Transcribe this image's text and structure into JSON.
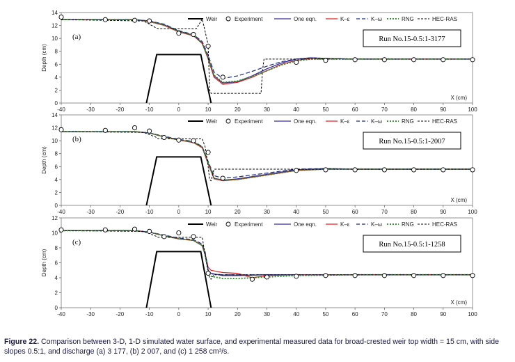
{
  "caption": {
    "label": "Figure 22.",
    "text": "Comparison between 3-D, 1-D simulated water surface, and experimental measured data for broad-crested weir top width = 15 cm, with side slopes 0.5:1, and discharge (a) 3 177, (b) 2 007, and (c) 1 258 cm³/s."
  },
  "legend": {
    "weir": "Weir",
    "experiment": "Experiment",
    "one_eqn": "One eqn.",
    "k_eps": "K–ε",
    "k_omega": "K–ω",
    "rng": "RNG",
    "hecras": "HEC-RAS"
  },
  "colors": {
    "weir": "#000000",
    "experiment": "#000000",
    "one_eqn": "#3b2a9e",
    "k_eps": "#e02020",
    "k_omega": "#1a2a8c",
    "rng": "#1f8a1f",
    "hecras": "#000000"
  },
  "chart_data": [
    {
      "type": "line",
      "panel": "(a)",
      "run_label": "Run No.15-0.5:1-3177",
      "xlabel": "X (cm)",
      "ylabel": "Depth (cm)",
      "xlim": [
        -40,
        100
      ],
      "ylim": [
        0,
        14
      ],
      "xticks": [
        -40,
        -30,
        -20,
        -10,
        0,
        10,
        20,
        30,
        40,
        50,
        60,
        70,
        80,
        90,
        100
      ],
      "yticks": [
        0,
        2,
        4,
        6,
        8,
        10,
        12,
        14
      ],
      "weir": {
        "x": [
          -11,
          -7.5,
          7.5,
          11
        ],
        "y": [
          0,
          7.5,
          7.5,
          0
        ]
      },
      "experiment": {
        "x": [
          -40,
          -25,
          -15,
          -10,
          0,
          5,
          10,
          15,
          40,
          50,
          60,
          70,
          80,
          90,
          100
        ],
        "y": [
          13.3,
          12.9,
          12.8,
          12.7,
          10.8,
          10.6,
          8.8,
          4.0,
          6.3,
          6.6,
          6.7,
          6.7,
          6.7,
          6.7,
          6.7
        ]
      },
      "series": [
        {
          "name": "One eqn.",
          "x": [
            -40,
            -15,
            -10,
            -5,
            0,
            5,
            8,
            10,
            12,
            15,
            20,
            25,
            30,
            35,
            40,
            45,
            50,
            60,
            80,
            100
          ],
          "y": [
            12.9,
            12.9,
            12.7,
            12.1,
            11.1,
            10.5,
            9.3,
            7.0,
            4.2,
            3.1,
            3.3,
            4.2,
            5.3,
            6.2,
            6.8,
            7.0,
            6.9,
            6.8,
            6.8,
            6.8
          ]
        },
        {
          "name": "K–ε",
          "x": [
            -40,
            -15,
            -10,
            -5,
            0,
            5,
            8,
            10,
            12,
            15,
            20,
            25,
            30,
            35,
            40,
            45,
            50,
            60,
            80,
            100
          ],
          "y": [
            12.9,
            12.9,
            12.6,
            12.0,
            11.0,
            10.4,
            9.2,
            6.8,
            4.0,
            2.9,
            3.2,
            4.0,
            5.0,
            6.0,
            6.6,
            6.9,
            6.9,
            6.8,
            6.8,
            6.8
          ]
        },
        {
          "name": "K–ω",
          "x": [
            -40,
            -15,
            -10,
            -5,
            0,
            5,
            8,
            10,
            12,
            15,
            20,
            25,
            30,
            35,
            40,
            45,
            50,
            60,
            80,
            100
          ],
          "y": [
            12.9,
            12.9,
            12.7,
            12.2,
            11.2,
            10.6,
            9.5,
            7.4,
            4.8,
            3.8,
            4.2,
            4.9,
            5.7,
            6.4,
            6.8,
            7.0,
            6.9,
            6.8,
            6.8,
            6.8
          ]
        },
        {
          "name": "RNG",
          "x": [
            -40,
            -15,
            -10,
            -5,
            0,
            5,
            8,
            10,
            12,
            15,
            20,
            25,
            30,
            35,
            40,
            45,
            50,
            60,
            80,
            100
          ],
          "y": [
            12.9,
            12.9,
            12.6,
            12.1,
            11.1,
            10.5,
            9.2,
            7.0,
            4.3,
            3.2,
            3.4,
            4.1,
            5.0,
            5.9,
            6.5,
            6.8,
            6.8,
            6.8,
            6.8,
            6.8
          ]
        },
        {
          "name": "HEC-RAS",
          "x": [
            -40,
            -12,
            -8,
            -7,
            6,
            8,
            9,
            10,
            10.5,
            11,
            28,
            28.5,
            29,
            30,
            100
          ],
          "y": [
            12.9,
            12.7,
            11.7,
            11.5,
            11.5,
            13.0,
            11.0,
            9.0,
            2.0,
            1.5,
            1.5,
            5.0,
            6.8,
            6.8,
            6.8
          ]
        }
      ]
    },
    {
      "type": "line",
      "panel": "(b)",
      "run_label": "Run No.15-0.5:1-2007",
      "xlabel": "X (cm)",
      "ylabel": "Depth (cm)",
      "xlim": [
        -40,
        100
      ],
      "ylim": [
        0,
        14
      ],
      "xticks": [
        -40,
        -30,
        -20,
        -10,
        0,
        10,
        20,
        30,
        40,
        50,
        60,
        70,
        80,
        90,
        100
      ],
      "yticks": [
        0,
        2,
        4,
        6,
        8,
        10,
        12,
        14
      ],
      "weir": {
        "x": [
          -11,
          -7.5,
          7.5,
          11
        ],
        "y": [
          0,
          7.5,
          7.5,
          0
        ]
      },
      "experiment": {
        "x": [
          -40,
          -25,
          -15,
          -10,
          -5,
          0,
          5,
          10,
          15,
          40,
          50,
          60,
          70,
          80,
          90,
          100
        ],
        "y": [
          11.7,
          11.6,
          12.0,
          11.5,
          10.5,
          10.1,
          10.0,
          8.2,
          4.2,
          5.4,
          5.5,
          5.5,
          5.5,
          5.5,
          5.5,
          5.5
        ]
      },
      "series": [
        {
          "name": "One eqn.",
          "x": [
            -40,
            -15,
            -10,
            -5,
            0,
            5,
            8,
            10,
            12,
            15,
            20,
            30,
            40,
            50,
            60,
            80,
            100
          ],
          "y": [
            11.4,
            11.4,
            11.2,
            10.6,
            10.1,
            9.8,
            9.0,
            6.5,
            4.2,
            3.9,
            4.1,
            4.8,
            5.5,
            5.7,
            5.6,
            5.6,
            5.6
          ]
        },
        {
          "name": "K–ε",
          "x": [
            -40,
            -15,
            -10,
            -5,
            0,
            5,
            8,
            10,
            12,
            15,
            20,
            30,
            40,
            50,
            60,
            80,
            100
          ],
          "y": [
            11.4,
            11.4,
            11.2,
            10.6,
            10.1,
            9.7,
            8.9,
            6.4,
            4.1,
            3.8,
            4.0,
            4.7,
            5.4,
            5.6,
            5.6,
            5.6,
            5.6
          ]
        },
        {
          "name": "K–ω",
          "x": [
            -40,
            -15,
            -10,
            -5,
            0,
            5,
            8,
            10,
            12,
            15,
            20,
            30,
            40,
            50,
            60,
            80,
            100
          ],
          "y": [
            11.4,
            11.4,
            11.2,
            10.7,
            10.2,
            9.9,
            9.1,
            6.8,
            4.6,
            4.2,
            4.4,
            5.0,
            5.6,
            5.7,
            5.6,
            5.6,
            5.6
          ]
        },
        {
          "name": "RNG",
          "x": [
            -40,
            -15,
            -10,
            -5,
            0,
            5,
            8,
            10,
            12,
            15,
            20,
            30,
            40,
            50,
            60,
            80,
            100
          ],
          "y": [
            11.4,
            11.4,
            11.2,
            10.6,
            10.1,
            9.8,
            9.0,
            6.6,
            4.2,
            3.9,
            4.0,
            4.7,
            5.4,
            5.6,
            5.6,
            5.6,
            5.6
          ]
        },
        {
          "name": "HEC-RAS",
          "x": [
            -40,
            -12,
            -8,
            -7,
            6,
            8,
            9,
            10,
            10.5,
            11,
            12,
            100
          ],
          "y": [
            11.4,
            11.3,
            10.6,
            10.3,
            10.3,
            10.3,
            9.0,
            6.0,
            4.0,
            3.8,
            5.6,
            5.6
          ]
        }
      ]
    },
    {
      "type": "line",
      "panel": "(c)",
      "run_label": "Run No.15-0.5:1-1258",
      "xlabel": "X (cm)",
      "ylabel": "Depth (cm)",
      "xlim": [
        -40,
        100
      ],
      "ylim": [
        0,
        12
      ],
      "xticks": [
        -40,
        -30,
        -20,
        -10,
        0,
        10,
        20,
        30,
        40,
        50,
        60,
        70,
        80,
        90,
        100
      ],
      "yticks": [
        0,
        2,
        4,
        6,
        8,
        10,
        12
      ],
      "weir": {
        "x": [
          -11,
          -7.5,
          7.5,
          11
        ],
        "y": [
          0,
          7.5,
          7.5,
          0
        ]
      },
      "experiment": {
        "x": [
          -40,
          -25,
          -15,
          -10,
          -5,
          0,
          5,
          10,
          25,
          30,
          40,
          50,
          60,
          70,
          80,
          90,
          100
        ],
        "y": [
          10.4,
          10.4,
          10.5,
          10.2,
          9.5,
          10.0,
          9.5,
          4.6,
          3.8,
          4.1,
          4.2,
          4.3,
          4.3,
          4.3,
          4.3,
          4.3,
          4.3
        ]
      },
      "series": [
        {
          "name": "One eqn.",
          "x": [
            -40,
            -15,
            -10,
            -5,
            0,
            5,
            8,
            9,
            10,
            11,
            15,
            20,
            30,
            40,
            60,
            80,
            100
          ],
          "y": [
            10.3,
            10.3,
            10.1,
            9.6,
            9.2,
            9.0,
            8.3,
            7.0,
            5.0,
            4.6,
            4.3,
            4.3,
            4.4,
            4.4,
            4.4,
            4.4,
            4.4
          ]
        },
        {
          "name": "K–ε",
          "x": [
            -40,
            -15,
            -10,
            -5,
            0,
            5,
            8,
            9,
            10,
            11,
            15,
            20,
            25,
            30,
            40,
            60,
            80,
            100
          ],
          "y": [
            10.3,
            10.3,
            10.1,
            9.6,
            9.2,
            9.0,
            8.3,
            7.2,
            5.4,
            5.0,
            4.7,
            4.6,
            4.0,
            4.3,
            4.4,
            4.4,
            4.4,
            4.4
          ]
        },
        {
          "name": "K–ω",
          "x": [
            -40,
            -15,
            -10,
            -5,
            0,
            5,
            8,
            9,
            10,
            11,
            15,
            20,
            30,
            40,
            60,
            80,
            100
          ],
          "y": [
            10.3,
            10.3,
            10.1,
            9.7,
            9.3,
            9.1,
            8.5,
            7.4,
            5.0,
            4.5,
            4.4,
            4.4,
            4.4,
            4.4,
            4.4,
            4.4,
            4.4
          ]
        },
        {
          "name": "RNG",
          "x": [
            -40,
            -15,
            -10,
            -5,
            0,
            5,
            8,
            9,
            10,
            11,
            15,
            20,
            30,
            40,
            60,
            80,
            100
          ],
          "y": [
            10.3,
            10.3,
            10.1,
            9.6,
            9.2,
            9.0,
            8.3,
            7.0,
            4.8,
            4.2,
            3.9,
            3.9,
            4.1,
            4.3,
            4.4,
            4.4,
            4.4
          ]
        },
        {
          "name": "HEC-RAS",
          "x": [
            -40,
            -12,
            -8,
            -7,
            6,
            8,
            9,
            10,
            10.5,
            11,
            12,
            100
          ],
          "y": [
            10.3,
            10.2,
            9.6,
            9.4,
            9.4,
            9.4,
            7.0,
            5.0,
            4.0,
            3.8,
            4.4,
            4.4
          ]
        }
      ]
    }
  ]
}
